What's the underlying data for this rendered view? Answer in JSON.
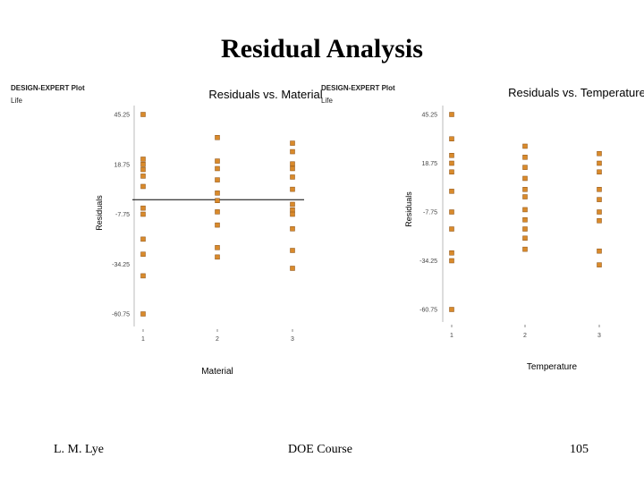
{
  "slide": {
    "title": "Residual Analysis",
    "footer_left": "L. M. Lye",
    "footer_center": "DOE  Course",
    "footer_right": "105"
  },
  "chart_data": [
    {
      "type": "scatter",
      "header": "DESIGN-EXPERT Plot",
      "subheader": "Life",
      "title": "Residuals vs. Material",
      "xlabel": "Material",
      "ylabel": "Residuals",
      "x_ticks": [
        "1",
        "2",
        "3"
      ],
      "y_ticks": [
        45.25,
        18.75,
        -7.75,
        -34.25,
        -60.75
      ],
      "y_tick_labels": [
        "45.25",
        "18.75",
        "-7.75",
        "-34.25",
        "-60.75"
      ],
      "ylim": [
        -60.75,
        45.25
      ],
      "zero_line": true,
      "marker_color": "#d98a2b",
      "points": [
        {
          "x": 1,
          "y": 45.25
        },
        {
          "x": 1,
          "y": 21.5
        },
        {
          "x": 1,
          "y": 18.75
        },
        {
          "x": 1,
          "y": 16.0
        },
        {
          "x": 1,
          "y": 12.5
        },
        {
          "x": 1,
          "y": 7.0
        },
        {
          "x": 1,
          "y": -4.5
        },
        {
          "x": 1,
          "y": -7.75
        },
        {
          "x": 1,
          "y": -21.0
        },
        {
          "x": 1,
          "y": -29.0
        },
        {
          "x": 1,
          "y": -40.5
        },
        {
          "x": 1,
          "y": -60.75
        },
        {
          "x": 2,
          "y": 33.0
        },
        {
          "x": 2,
          "y": 20.5
        },
        {
          "x": 2,
          "y": 16.5
        },
        {
          "x": 2,
          "y": 10.5
        },
        {
          "x": 2,
          "y": 3.5
        },
        {
          "x": 2,
          "y": -0.5
        },
        {
          "x": 2,
          "y": -6.5
        },
        {
          "x": 2,
          "y": -13.5
        },
        {
          "x": 2,
          "y": -25.5
        },
        {
          "x": 2,
          "y": -30.5
        },
        {
          "x": 3,
          "y": 30.0
        },
        {
          "x": 3,
          "y": 25.5
        },
        {
          "x": 3,
          "y": 19.0
        },
        {
          "x": 3,
          "y": 16.5
        },
        {
          "x": 3,
          "y": 12.0
        },
        {
          "x": 3,
          "y": 5.5
        },
        {
          "x": 3,
          "y": -2.5
        },
        {
          "x": 3,
          "y": -5.5
        },
        {
          "x": 3,
          "y": -7.75
        },
        {
          "x": 3,
          "y": -15.5
        },
        {
          "x": 3,
          "y": -27.0
        },
        {
          "x": 3,
          "y": -36.5
        }
      ]
    },
    {
      "type": "scatter",
      "header": "DESIGN-EXPERT Plot",
      "subheader": "Life",
      "title": "Residuals vs. Temperature",
      "xlabel": "Temperature",
      "ylabel": "Residuals",
      "x_ticks": [
        "1",
        "2",
        "3"
      ],
      "y_ticks": [
        45.25,
        18.75,
        -7.75,
        -34.25,
        -60.75
      ],
      "y_tick_labels": [
        "45.25",
        "18.75",
        "-7.75",
        "-34.25",
        "-60.75"
      ],
      "ylim": [
        -60.75,
        45.25
      ],
      "zero_line": false,
      "marker_color": "#d98a2b",
      "points": [
        {
          "x": 1,
          "y": 45.25
        },
        {
          "x": 1,
          "y": 32.0
        },
        {
          "x": 1,
          "y": 23.0
        },
        {
          "x": 1,
          "y": 18.75
        },
        {
          "x": 1,
          "y": 14.0
        },
        {
          "x": 1,
          "y": 3.5
        },
        {
          "x": 1,
          "y": -7.75
        },
        {
          "x": 1,
          "y": -17.0
        },
        {
          "x": 1,
          "y": -30.0
        },
        {
          "x": 1,
          "y": -34.25
        },
        {
          "x": 1,
          "y": -60.75
        },
        {
          "x": 2,
          "y": 28.0
        },
        {
          "x": 2,
          "y": 22.0
        },
        {
          "x": 2,
          "y": 16.5
        },
        {
          "x": 2,
          "y": 10.5
        },
        {
          "x": 2,
          "y": 4.5
        },
        {
          "x": 2,
          "y": 0.5
        },
        {
          "x": 2,
          "y": -6.5
        },
        {
          "x": 2,
          "y": -12.0
        },
        {
          "x": 2,
          "y": -17.0
        },
        {
          "x": 2,
          "y": -22.0
        },
        {
          "x": 2,
          "y": -28.0
        },
        {
          "x": 3,
          "y": 24.0
        },
        {
          "x": 3,
          "y": 18.75
        },
        {
          "x": 3,
          "y": 14.0
        },
        {
          "x": 3,
          "y": 4.5
        },
        {
          "x": 3,
          "y": -1.0
        },
        {
          "x": 3,
          "y": -7.75
        },
        {
          "x": 3,
          "y": -12.5
        },
        {
          "x": 3,
          "y": -29.0
        },
        {
          "x": 3,
          "y": -36.5
        }
      ]
    }
  ]
}
